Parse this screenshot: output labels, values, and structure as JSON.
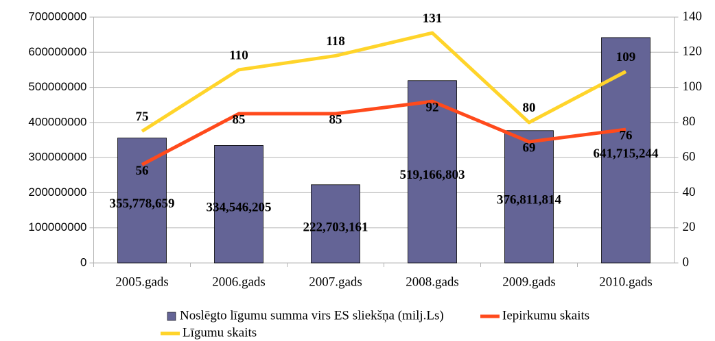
{
  "chart_data": {
    "type": "bar",
    "categories": [
      "2005.gads",
      "2006.gads",
      "2007.gads",
      "2008.gads",
      "2009.gads",
      "2010.gads"
    ],
    "series": [
      {
        "name": "Noslēgto līgumu summa virs ES sliekšņa (milj.Ls)",
        "type": "bar",
        "color": "#646496",
        "values": [
          355778659,
          334546205,
          222703161,
          519166803,
          376811814,
          641715244
        ],
        "value_labels": [
          "355,778,659",
          "334,546,205",
          "222,703,161",
          "519,166,803",
          "376,811,814",
          "641,715,244"
        ]
      },
      {
        "name": "Iepirkumu skaits",
        "type": "line",
        "axis": "y2",
        "color": "#ff4a1c",
        "values": [
          56,
          85,
          85,
          92,
          69,
          76
        ]
      },
      {
        "name": "Līgumu skaits",
        "type": "line",
        "axis": "y2",
        "color": "#ffd42a",
        "values": [
          75,
          110,
          118,
          131,
          80,
          109
        ]
      }
    ],
    "ylim": [
      0,
      700000000
    ],
    "yticks": [
      0,
      100000000,
      200000000,
      300000000,
      400000000,
      500000000,
      600000000,
      700000000
    ],
    "y2lim": [
      0,
      140
    ],
    "y2ticks": [
      0,
      20,
      40,
      60,
      80,
      100,
      120,
      140
    ],
    "grid": true,
    "legend": "bottom"
  }
}
